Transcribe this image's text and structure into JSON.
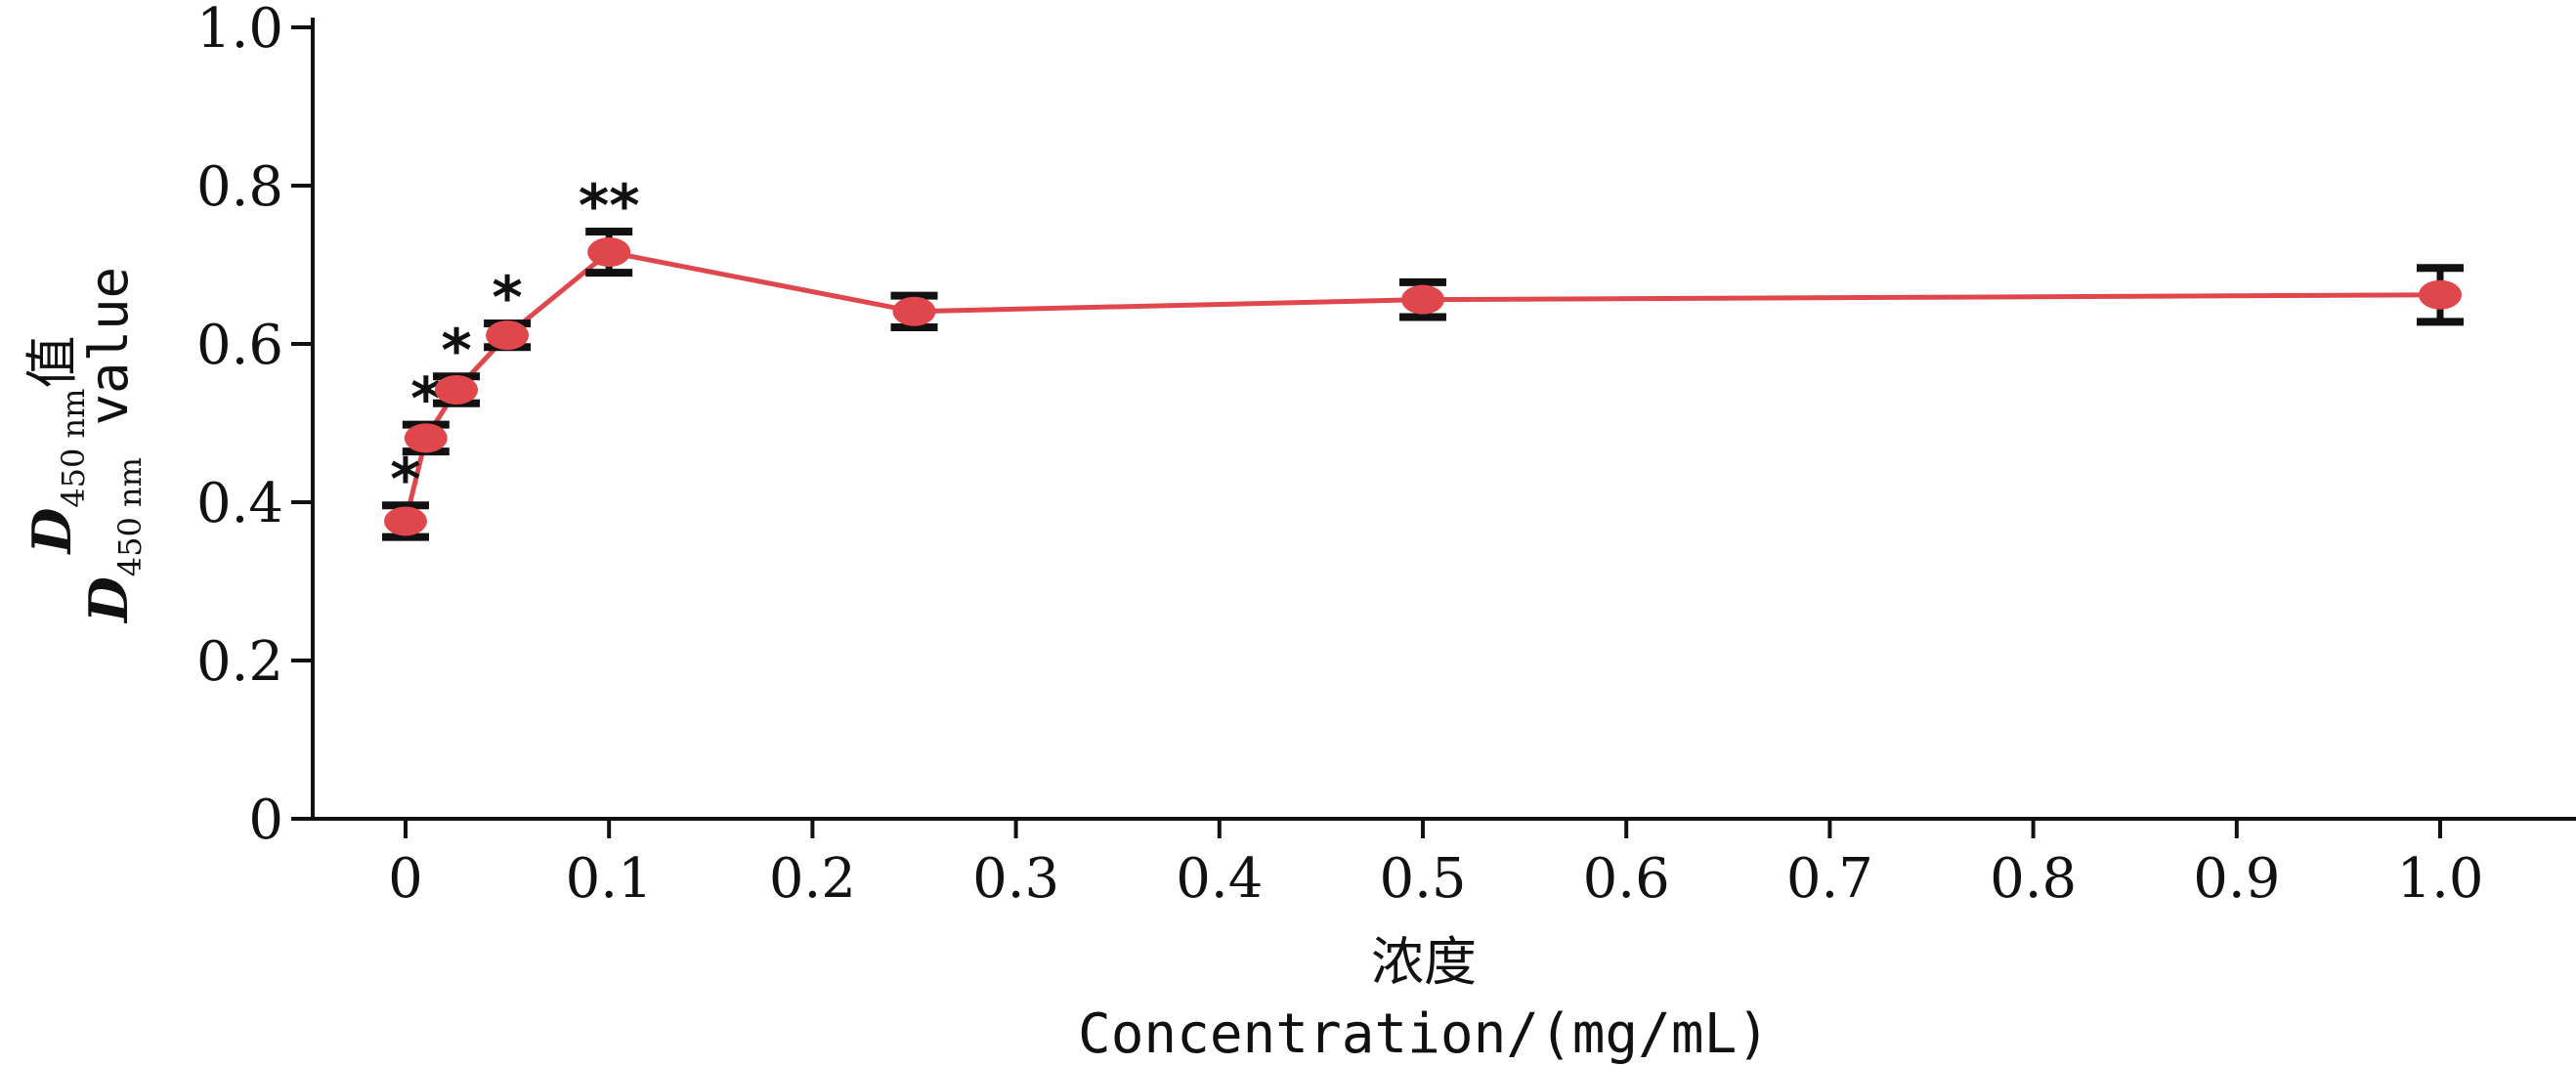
{
  "chart_data": {
    "type": "line",
    "x": [
      0,
      0.01,
      0.025,
      0.05,
      0.1,
      0.25,
      0.5,
      1.0
    ],
    "series": [
      {
        "values": [
          0.376,
          0.481,
          0.542,
          0.611,
          0.716,
          0.641,
          0.656,
          0.662
        ],
        "errors": [
          0.02,
          0.017,
          0.017,
          0.015,
          0.026,
          0.02,
          0.022,
          0.034
        ],
        "significance": [
          "*",
          "*",
          "*",
          "*",
          "**",
          "",
          "",
          ""
        ]
      }
    ],
    "xlim": [
      -0.05,
      1.03
    ],
    "ylim": [
      0,
      1.0
    ],
    "xticks": [
      "0",
      "0.1",
      "0.2",
      "0.3",
      "0.4",
      "0.5",
      "0.6",
      "0.7",
      "0.8",
      "0.9",
      "1.0"
    ],
    "xtick_values": [
      0,
      0.1,
      0.2,
      0.3,
      0.4,
      0.5,
      0.6,
      0.7,
      0.8,
      0.9,
      1.0
    ],
    "yticks": [
      "0",
      "0.2",
      "0.4",
      "0.6",
      "0.8",
      "1.0"
    ],
    "ytick_values": [
      0,
      0.2,
      0.4,
      0.6,
      0.8,
      1.0
    ],
    "xlabel_cn": "浓度",
    "xlabel_en": "Concentration/(mg/mL)",
    "ylabel_cn": {
      "var": "D",
      "sub": "450 nm",
      "suffix": "值"
    },
    "ylabel_en": {
      "var": "D",
      "sub": "450 nm",
      "suffix": " value"
    },
    "colors": {
      "line": "#e0474c",
      "marker": "#e0474c",
      "errorbar": "#111111",
      "axis": "#111111"
    },
    "grid": false,
    "legend": "none"
  }
}
